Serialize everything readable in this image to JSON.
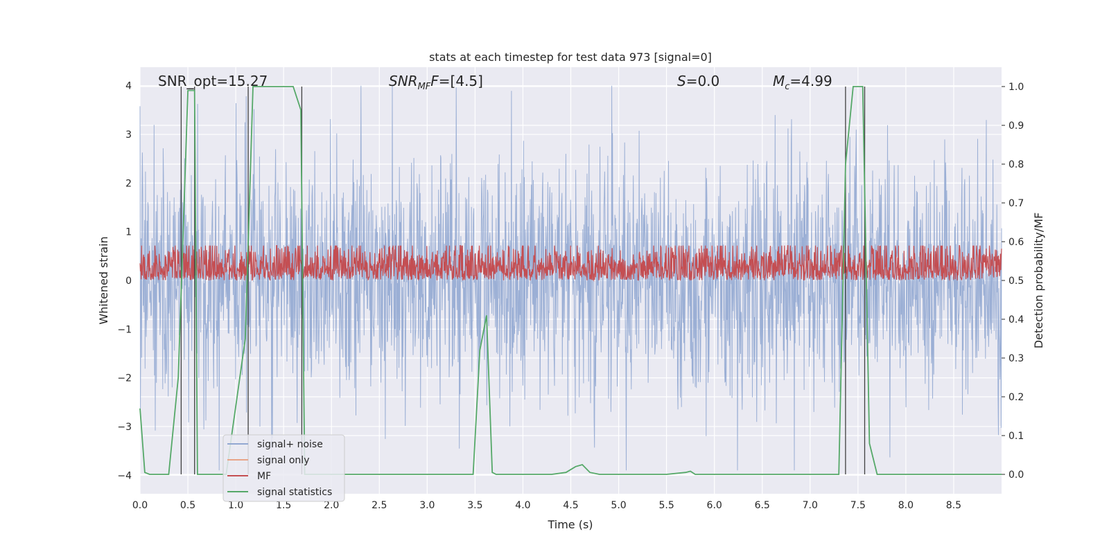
{
  "chart_data": {
    "type": "line",
    "title": "stats at each timestep for test data 973 [signal=0]",
    "xlabel": "Time (s)",
    "ylabel": "Whitened strain",
    "y2label": "Detection probability/MF",
    "xlim": [
      0.0,
      9.0
    ],
    "ylim": [
      -4.38,
      4.38
    ],
    "y2lim": [
      -0.05,
      1.05
    ],
    "xticks": [
      "0.0",
      "0.5",
      "1.0",
      "1.5",
      "2.0",
      "2.5",
      "3.0",
      "3.5",
      "4.0",
      "4.5",
      "5.0",
      "5.5",
      "6.0",
      "6.5",
      "7.0",
      "7.5",
      "8.0",
      "8.5"
    ],
    "yticks": [
      "4",
      "3",
      "2",
      "1",
      "0",
      "−1",
      "−2",
      "−3",
      "−4"
    ],
    "y2ticks": [
      "1.0",
      "0.9",
      "0.8",
      "0.7",
      "0.6",
      "0.5",
      "0.4",
      "0.3",
      "0.2",
      "0.1",
      "0.0"
    ],
    "grid": true,
    "legend_position": "lower-left",
    "annotations": {
      "snr_opt": "SNR_opt=15.27",
      "snr_mf_main": "SNR",
      "snr_mf_sub": "MF",
      "snr_mf_rest": "=[4.5]",
      "s_main": "S",
      "s_rest": "=0.0",
      "mc_main": "M",
      "mc_sub": "c",
      "mc_rest": "=4.99"
    },
    "series": [
      {
        "name": "signal+ noise",
        "color": "#92a8d1",
        "style": "dense noise, approx. range -3.9 to 4.0"
      },
      {
        "name": "signal only",
        "color": "#e8a488",
        "values": []
      },
      {
        "name": "MF",
        "color": "#c44e52",
        "style": "dense noise, approx. range 0.0 to 1.0"
      },
      {
        "name": "signal statistics",
        "color": "#55a868",
        "x": [
          0.0,
          0.05,
          0.1,
          0.3,
          0.4,
          0.5,
          0.53,
          0.57,
          0.6,
          0.65,
          0.7,
          0.9,
          1.1,
          1.18,
          1.25,
          1.6,
          1.68,
          1.72,
          1.78,
          1.9,
          2.5,
          3.0,
          3.48,
          3.55,
          3.62,
          3.68,
          3.72,
          3.9,
          4.3,
          4.45,
          4.55,
          4.62,
          4.7,
          4.8,
          5.5,
          5.7,
          5.75,
          5.8,
          6.5,
          7.3,
          7.37,
          7.45,
          7.55,
          7.62,
          7.7,
          8.0,
          8.5,
          9.0
        ],
        "values": [
          0.17,
          0.005,
          0.0,
          0.0,
          0.25,
          0.99,
          0.99,
          0.99,
          0.0,
          0.0,
          0.0,
          0.0,
          0.35,
          1.0,
          1.0,
          1.0,
          0.94,
          0.0,
          0.0,
          0.0,
          0.0,
          0.0,
          0.0,
          0.32,
          0.41,
          0.005,
          0.0,
          0.0,
          0.0,
          0.005,
          0.02,
          0.025,
          0.005,
          0.0,
          0.0,
          0.005,
          0.008,
          0.0,
          0.0,
          0.0,
          0.8,
          1.0,
          1.0,
          0.08,
          0.0,
          0.0,
          0.0,
          0.0
        ]
      }
    ],
    "vertical_markers": [
      0.43,
      0.57,
      1.13,
      1.69,
      7.37,
      7.57
    ]
  },
  "legend": {
    "items": [
      {
        "label": "signal+ noise",
        "color": "#92a8d1"
      },
      {
        "label": "signal only",
        "color": "#e8a488"
      },
      {
        "label": "MF",
        "color": "#c44e52"
      },
      {
        "label": "signal statistics",
        "color": "#55a868"
      }
    ]
  },
  "colors": {
    "plot_bg": "#eaeaf2",
    "grid": "#ffffff",
    "axis_text": "#262626"
  }
}
